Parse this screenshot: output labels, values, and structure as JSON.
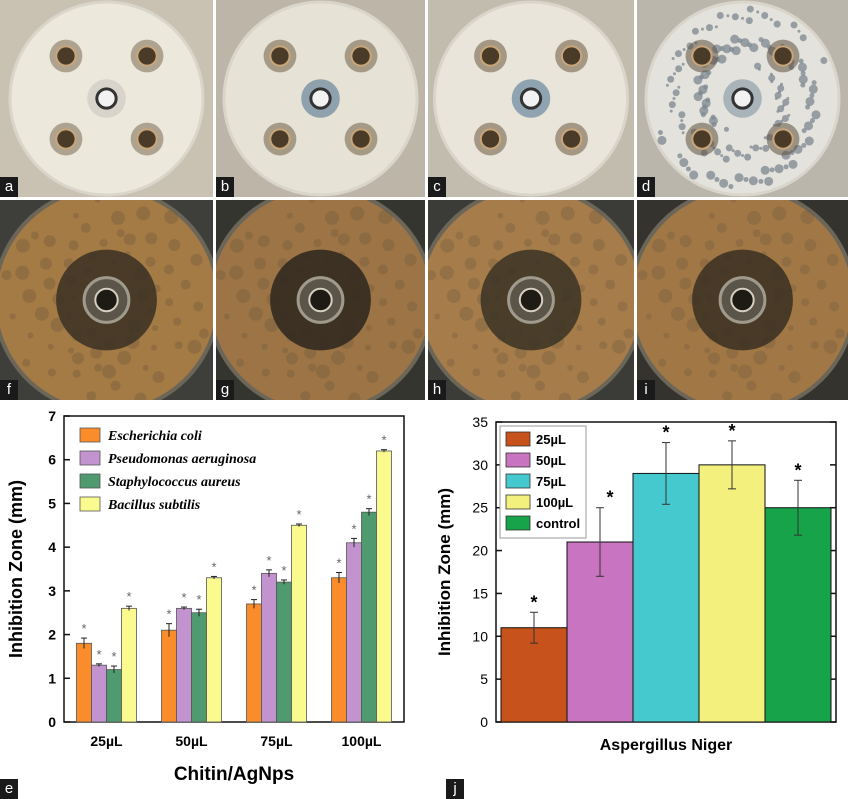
{
  "photo_panels": {
    "top_row": [
      {
        "letter": "a",
        "tone": "#c9c2b2",
        "plate": "#ece8dc",
        "zone_color": "#7a6a52",
        "control_halo": "#d8d4cc",
        "contaminated": false
      },
      {
        "letter": "b",
        "tone": "#bdb6a8",
        "plate": "#e6e2d6",
        "zone_color": "#6e5e44",
        "control_halo": "#8fa1ad",
        "contaminated": false
      },
      {
        "letter": "c",
        "tone": "#c2bcae",
        "plate": "#e9e5da",
        "zone_color": "#6b5a40",
        "control_halo": "#8fa3b0",
        "contaminated": false
      },
      {
        "letter": "d",
        "tone": "#bbb6ab",
        "plate": "#e4e2dc",
        "zone_color": "#5e5040",
        "control_halo": "#a8b3ba",
        "contaminated": true
      }
    ],
    "bottom_row": [
      {
        "letter": "f",
        "tone": "#3e3f3b",
        "plate": "#a47a45",
        "zone_color": "#3a3023"
      },
      {
        "letter": "g",
        "tone": "#34352f",
        "plate": "#9c7445",
        "zone_color": "#2d261d"
      },
      {
        "letter": "h",
        "tone": "#3b3c37",
        "plate": "#a67d4a",
        "zone_color": "#3a3225"
      },
      {
        "letter": "i",
        "tone": "#35332e",
        "plate": "#a17845",
        "zone_color": "#382f22"
      }
    ]
  },
  "chart_data": [
    {
      "panel": "e",
      "type": "bar",
      "categories": [
        "25µL",
        "50µL",
        "75µL",
        "100µL"
      ],
      "xlabel": "Chitin/AgNps",
      "ylabel": "Inhibition Zone (mm)",
      "ylim": [
        0,
        7
      ],
      "yticks": [
        "0",
        "1",
        "2",
        "3",
        "4",
        "5",
        "6",
        "7"
      ],
      "legend_position": "top-left",
      "series": [
        {
          "name": "Escherichia coli",
          "color": "#fb8c2b",
          "values": [
            1.8,
            2.1,
            2.7,
            3.3
          ],
          "errors": [
            0.12,
            0.15,
            0.1,
            0.12
          ]
        },
        {
          "name": "Pseudomonas aeruginosa",
          "color": "#c393d0",
          "values": [
            1.3,
            2.6,
            3.4,
            4.1
          ],
          "errors": [
            0.03,
            0.03,
            0.08,
            0.1
          ]
        },
        {
          "name": "Staphylococcus aureus",
          "color": "#4f9a6e",
          "values": [
            1.2,
            2.5,
            3.2,
            4.8
          ],
          "errors": [
            0.08,
            0.08,
            0.05,
            0.08
          ]
        },
        {
          "name": "Bacillus subtilis",
          "color": "#fafa8e",
          "values": [
            2.6,
            3.3,
            4.5,
            6.2
          ],
          "errors": [
            0.05,
            0.03,
            0.03,
            0.03
          ]
        }
      ],
      "significance_marker": "*"
    },
    {
      "panel": "j",
      "type": "bar",
      "categories": [
        "25µL",
        "50µL",
        "75µL",
        "100µL",
        "control"
      ],
      "xlabel": "Aspergillus Niger",
      "ylabel": "Inhibition Zone (mm)",
      "ylim": [
        0,
        35
      ],
      "yticks": [
        "0",
        "5",
        "10",
        "15",
        "20",
        "25",
        "30",
        "35"
      ],
      "legend_position": "top-left",
      "series": [
        {
          "name": "25µL",
          "color": "#c7521b",
          "value": 11,
          "error": 1.8
        },
        {
          "name": "50µL",
          "color": "#c874c0",
          "value": 21,
          "error": 4
        },
        {
          "name": "75µL",
          "color": "#46c8cf",
          "value": 29,
          "error": 3.6
        },
        {
          "name": "100µL",
          "color": "#f3f07d",
          "value": 30,
          "error": 2.8
        },
        {
          "name": "control",
          "color": "#16a34a",
          "value": 25,
          "error": 3.2
        }
      ],
      "significance_marker": "*"
    }
  ]
}
